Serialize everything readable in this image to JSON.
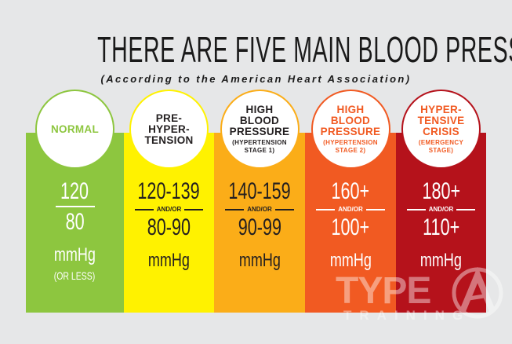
{
  "title": "THERE ARE FIVE MAIN BLOOD PRESSURE RANGES",
  "subtitle": "(According to the American Heart Association)",
  "categories": [
    {
      "name": "NORMAL",
      "sub": "",
      "color": "#8dc63f",
      "circle_text_color": "#8dc63f",
      "value_color": "#ffffff",
      "systolic": "120",
      "connector": "",
      "diastolic": "80",
      "unit": "mmHg",
      "note": "(OR LESS)"
    },
    {
      "name": "PRE-\nHYPER-\nTENSION",
      "sub": "",
      "color": "#fff200",
      "circle_text_color": "#231f20",
      "value_color": "#231f20",
      "systolic": "120-139",
      "connector": "AND/OR",
      "diastolic": "80-90",
      "unit": "mmHg",
      "note": ""
    },
    {
      "name": "HIGH\nBLOOD\nPRESSURE",
      "sub": "(HYPERTENSION\nSTAGE 1)",
      "color": "#fbad18",
      "circle_text_color": "#231f20",
      "value_color": "#231f20",
      "systolic": "140-159",
      "connector": "AND/OR",
      "diastolic": "90-99",
      "unit": "mmHg",
      "note": ""
    },
    {
      "name": "HIGH\nBLOOD\nPRESSURE",
      "sub": "(HYPERTENSION\nSTAGE 2)",
      "color": "#f15a22",
      "circle_text_color": "#f15a22",
      "value_color": "#ffffff",
      "systolic": "160+",
      "connector": "AND/OR",
      "diastolic": "100+",
      "unit": "mmHg",
      "note": ""
    },
    {
      "name": "HYPER-\nTENSIVE\nCRISIS",
      "sub": "(EMERGENCY\nSTAGE)",
      "color": "#b5121b",
      "circle_text_color": "#f15a22",
      "value_color": "#ffffff",
      "systolic": "180+",
      "connector": "AND/OR",
      "diastolic": "110+",
      "unit": "mmHg",
      "note": ""
    }
  ],
  "watermark": {
    "line1": "TYPE",
    "line2": "TRAINING",
    "logo": "circle-A-logo"
  }
}
